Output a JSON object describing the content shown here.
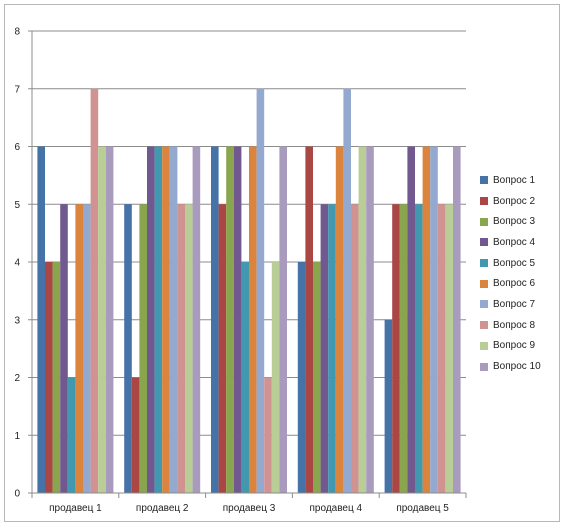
{
  "chart_data": {
    "type": "bar",
    "title": "",
    "xlabel": "",
    "ylabel": "",
    "ylim": [
      0,
      8
    ],
    "yticks": [
      0,
      1,
      2,
      3,
      4,
      5,
      6,
      7,
      8
    ],
    "grid": true,
    "legend_position": "right",
    "categories": [
      "продавец 1",
      "продавец 2",
      "продавец 3",
      "продавец 4",
      "продавец 5"
    ],
    "series": [
      {
        "name": "Вопрос 1",
        "color": "#4572A7",
        "values": [
          6,
          5,
          6,
          4,
          3
        ]
      },
      {
        "name": "Вопрос 2",
        "color": "#AA4643",
        "values": [
          4,
          2,
          5,
          6,
          5
        ]
      },
      {
        "name": "Вопрос 3",
        "color": "#89A54E",
        "values": [
          4,
          5,
          6,
          4,
          5
        ]
      },
      {
        "name": "Вопрос 4",
        "color": "#71588F",
        "values": [
          5,
          6,
          6,
          5,
          6
        ]
      },
      {
        "name": "Вопрос 5",
        "color": "#4198AF",
        "values": [
          2,
          6,
          4,
          5,
          5
        ]
      },
      {
        "name": "Вопрос 6",
        "color": "#DB843D",
        "values": [
          5,
          6,
          6,
          6,
          6
        ]
      },
      {
        "name": "Вопрос 7",
        "color": "#93A9CF",
        "values": [
          5,
          6,
          7,
          7,
          6
        ]
      },
      {
        "name": "Вопрос 8",
        "color": "#D19392",
        "values": [
          7,
          5,
          2,
          5,
          5
        ]
      },
      {
        "name": "Вопрос 9",
        "color": "#B9CD96",
        "values": [
          6,
          5,
          4,
          6,
          5
        ]
      },
      {
        "name": "Вопрос 10",
        "color": "#A99BBD",
        "values": [
          6,
          6,
          6,
          6,
          6
        ]
      }
    ]
  }
}
